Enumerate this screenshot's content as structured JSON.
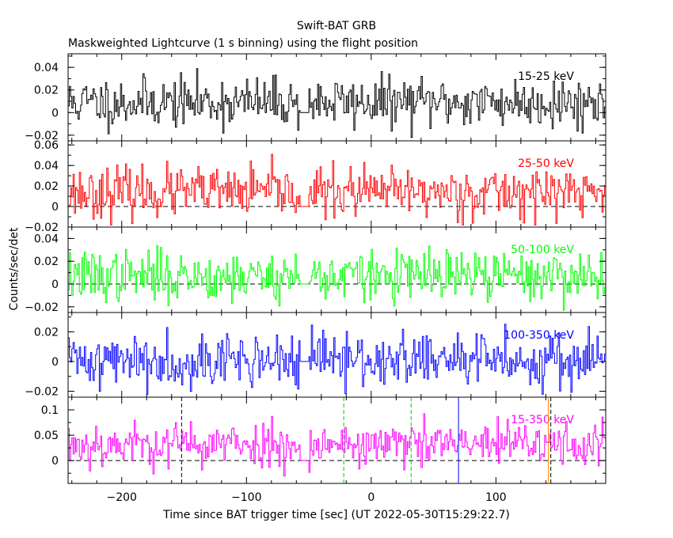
{
  "title": "Swift-BAT GRB",
  "subtitle": "Maskweighted Lightcurve (1 s binning) using the flight position",
  "ylabel": "Counts/sec/det",
  "xlabel": "Time since BAT trigger time [sec] (UT 2022-05-30T15:29:22.7)",
  "chart_data": {
    "type": "line",
    "x_range": [
      -243,
      188
    ],
    "x_ticks": [
      -200,
      -100,
      0,
      100
    ],
    "gap": [
      -57,
      -50
    ],
    "panels": [
      {
        "name": "15-25 keV",
        "color": "#000000",
        "ylim": [
          -0.025,
          0.052
        ],
        "yticks": [
          -0.02,
          0,
          0.02,
          0.04
        ],
        "ytick_labels": [
          "−0.02",
          "0",
          "0.02",
          "0.04"
        ],
        "mean": 0.009,
        "noise": 0.011,
        "seed": 11,
        "zero_line": false
      },
      {
        "name": "25-50 keV",
        "color": "#ff0000",
        "ylim": [
          -0.02,
          0.064
        ],
        "yticks": [
          -0.02,
          0,
          0.02,
          0.04,
          0.06
        ],
        "ytick_labels": [
          "−0.02",
          "0",
          "0.02",
          "0.04",
          "0.06"
        ],
        "mean": 0.014,
        "noise": 0.012,
        "seed": 23,
        "zero_line": true
      },
      {
        "name": "50-100 keV",
        "color": "#00ff00",
        "ylim": [
          -0.025,
          0.05
        ],
        "yticks": [
          -0.02,
          0,
          0.02,
          0.04
        ],
        "ytick_labels": [
          "−0.02",
          "0",
          "0.02",
          "0.04"
        ],
        "mean": 0.007,
        "noise": 0.011,
        "seed": 37,
        "zero_line": true
      },
      {
        "name": "100-350 keV",
        "color": "#0000ff",
        "ylim": [
          -0.024,
          0.033
        ],
        "yticks": [
          -0.02,
          0,
          0.02
        ],
        "ytick_labels": [
          "−0.02",
          "0",
          "0.02"
        ],
        "mean": 0.001,
        "noise": 0.009,
        "seed": 41,
        "zero_line": false
      },
      {
        "name": "15-350 keV",
        "color": "#ff00ff",
        "ylim": [
          -0.045,
          0.125
        ],
        "yticks": [
          0,
          0.05,
          0.1
        ],
        "ytick_labels": [
          "0",
          "0.05",
          "0.1"
        ],
        "mean": 0.032,
        "noise": 0.022,
        "seed": 53,
        "zero_line": true
      }
    ],
    "markers": [
      {
        "x": -152,
        "color": "#000000",
        "style": "dash"
      },
      {
        "x": -22,
        "color": "#00cc00",
        "style": "dash"
      },
      {
        "x": 32,
        "color": "#00cc00",
        "style": "dash"
      },
      {
        "x": 70,
        "color": "#0000ff",
        "style": "solid"
      },
      {
        "x": 142,
        "color": "#ff8c00",
        "style": "solid"
      },
      {
        "x": 144,
        "color": "#000000",
        "style": "dash"
      }
    ]
  }
}
